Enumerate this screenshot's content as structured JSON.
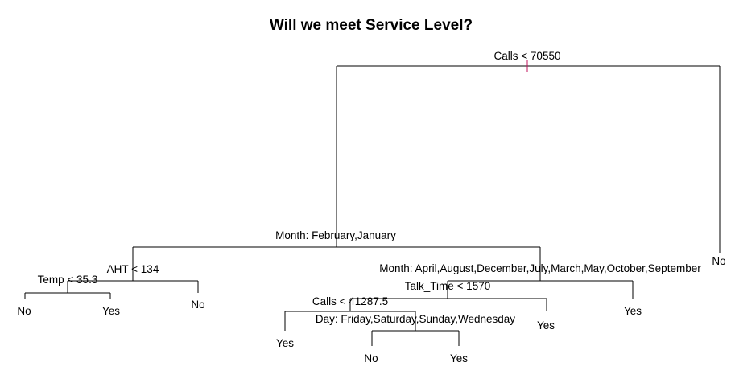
{
  "title": "Will we meet Service Level?",
  "splits": {
    "root": "Calls < 70550",
    "month1": "Month: February,January",
    "aht": "AHT < 134",
    "temp": "Temp < 35.3",
    "month2": "Month: April,August,December,July,March,May,October,September",
    "talk": "Talk_Time < 1570",
    "calls2": "Calls < 41287.5",
    "day": "Day: Friday,Saturday,Sunday,Wednesday"
  },
  "leaves": {
    "temp_left": "No",
    "temp_right": "Yes",
    "aht_right": "No",
    "calls2_left": "Yes",
    "day_left": "No",
    "day_right": "Yes",
    "talk_right": "Yes",
    "month2_right": "Yes",
    "root_right": "No"
  },
  "colors": {
    "root_marker": "#c0135e"
  }
}
